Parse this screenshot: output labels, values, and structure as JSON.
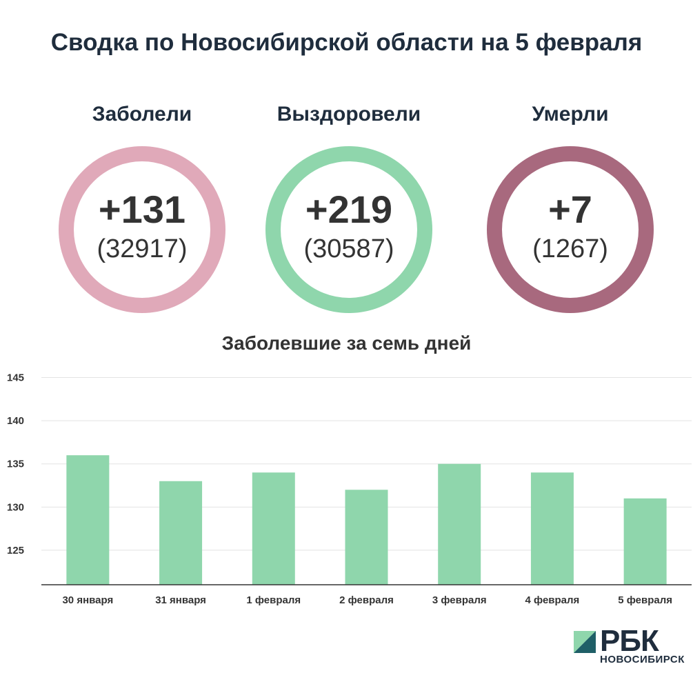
{
  "title": "Сводка по Новосибирской области на 5 февраля",
  "stats": [
    {
      "label": "Заболели",
      "value": "+131",
      "total": "(32917)",
      "color": "#e0a9b9"
    },
    {
      "label": "Выздоровели",
      "value": "+219",
      "total": "(30587)",
      "color": "#8fd6ac"
    },
    {
      "label": "Умерли",
      "value": "+7",
      "total": "(1267)",
      "color": "#a8697e"
    }
  ],
  "chart_data": {
    "type": "bar",
    "title": "Заболевшие за семь дней",
    "categories": [
      "30 января",
      "31 января",
      "1 февраля",
      "2 февраля",
      "3 февраля",
      "4 февраля",
      "5 февраля"
    ],
    "values": [
      136,
      133,
      134,
      132,
      135,
      134,
      131
    ],
    "ylim": [
      121,
      146
    ],
    "yticks": [
      125,
      130,
      135,
      140,
      145
    ],
    "bar_color": "#8fd6ac",
    "grid": true
  },
  "logo": {
    "text": "РБК",
    "sub": "НОВОСИБИРСК"
  }
}
